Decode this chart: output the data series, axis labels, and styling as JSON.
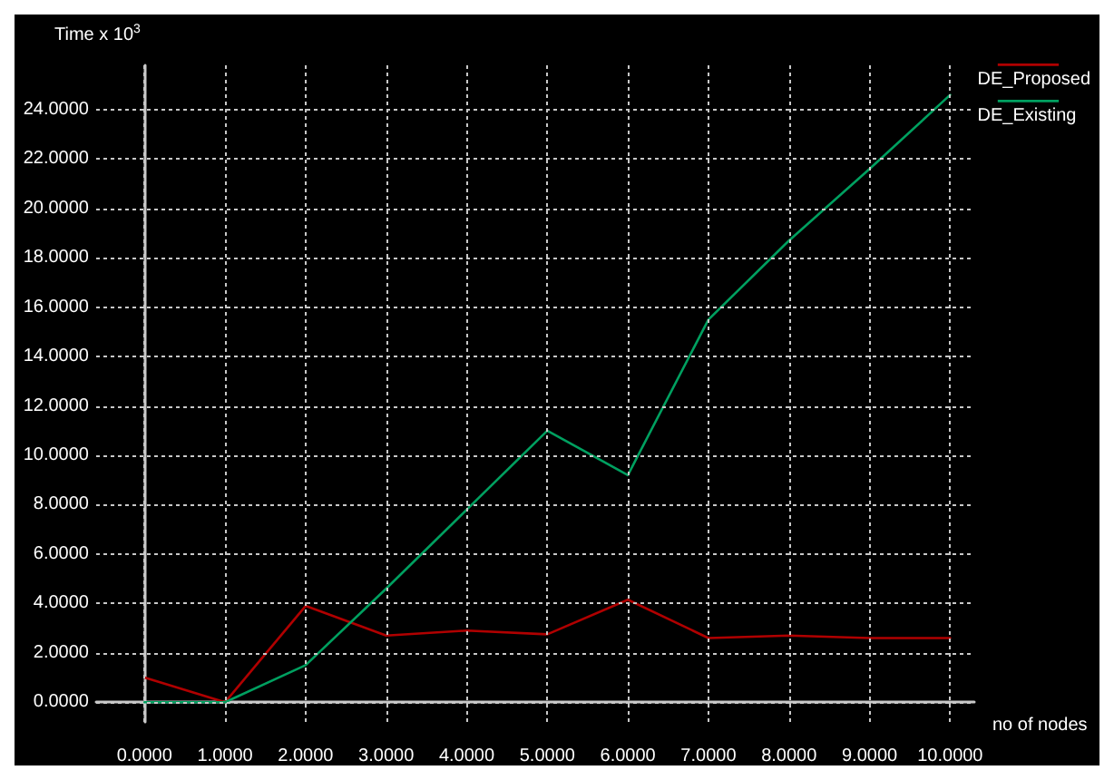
{
  "chart_data": {
    "type": "line",
    "xlabel": "no of nodes",
    "ylabel": "Time x 10$^{3}$",
    "x": [
      0,
      1,
      2,
      3,
      4,
      5,
      6,
      7,
      8,
      9,
      10
    ],
    "series": [
      {
        "name": "DE_Proposed",
        "color": "#b00000",
        "values": [
          1.0,
          0,
          3.9,
          2.7,
          2.9,
          2.75,
          4.15,
          2.6,
          2.7,
          2.6,
          2.6
        ]
      },
      {
        "name": "DE_Existing",
        "color": "#00a060",
        "values": [
          0,
          0,
          1.5,
          4.6,
          7.8,
          11.0,
          9.2,
          15.5,
          18.7,
          21.6,
          24.6
        ]
      }
    ],
    "xlim": [
      -0.6,
      10.3
    ],
    "ylim": [
      -0.8,
      25.8
    ],
    "xticks": [
      {
        "value": 0,
        "label": "0.0000"
      },
      {
        "value": 1,
        "label": "1.0000"
      },
      {
        "value": 2,
        "label": "2.0000"
      },
      {
        "value": 3,
        "label": "3.0000"
      },
      {
        "value": 4,
        "label": "4.0000"
      },
      {
        "value": 5,
        "label": "5.0000"
      },
      {
        "value": 6,
        "label": "6.0000"
      },
      {
        "value": 7,
        "label": "7.0000"
      },
      {
        "value": 8,
        "label": "8.0000"
      },
      {
        "value": 9,
        "label": "9.0000"
      },
      {
        "value": 10,
        "label": "10.0000"
      }
    ],
    "yticks": [
      {
        "value": 0,
        "label": "0.0000"
      },
      {
        "value": 2,
        "label": "2.0000"
      },
      {
        "value": 4,
        "label": "4.0000"
      },
      {
        "value": 6,
        "label": "6.0000"
      },
      {
        "value": 8,
        "label": "8.0000"
      },
      {
        "value": 10,
        "label": "10.0000"
      },
      {
        "value": 12,
        "label": "12.0000"
      },
      {
        "value": 14,
        "label": "14.0000"
      },
      {
        "value": 16,
        "label": "16.0000"
      },
      {
        "value": 18,
        "label": "18.0000"
      },
      {
        "value": 20,
        "label": "20.0000"
      },
      {
        "value": 22,
        "label": "22.0000"
      },
      {
        "value": 24,
        "label": "24.0000"
      }
    ],
    "grid": true,
    "legend": "top right",
    "marker": "none",
    "line_style": "solid"
  }
}
